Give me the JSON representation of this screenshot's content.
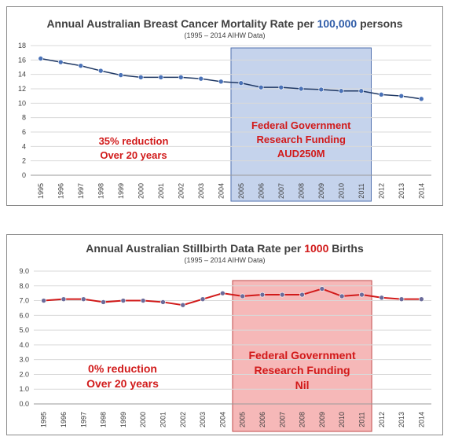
{
  "charts": [
    {
      "title_prefix": "Annual Australian Breast Cancer Mortality Rate per ",
      "title_highlight": "100,000",
      "title_suffix": " persons",
      "subtitle": "(1995 – 2014 AIHW Data)",
      "annotation_left": [
        "35% reduction",
        "Over 20 years"
      ],
      "annotation_box": [
        "Federal Government",
        "Research Funding",
        "AUD250M"
      ],
      "colors": {
        "line": "#1f3864",
        "marker": "#4a72b8",
        "highlight_fill": "#c5d3ec",
        "highlight_border": "#4f6fae",
        "title_highlight": "#2f5ca8",
        "annotation": "#d11a1a"
      }
    },
    {
      "title_prefix": "Annual Australian Stillbirth Data Rate per ",
      "title_highlight": "1000",
      "title_suffix": " Births",
      "subtitle": "(1995 – 2014 AIHW Data)",
      "annotation_left": [
        "0% reduction",
        "Over 20 years"
      ],
      "annotation_box": [
        "Federal Government",
        "Research Funding",
        "Nil"
      ],
      "colors": {
        "line": "#d11a1a",
        "marker": "#6b6b9a",
        "highlight_fill": "#f6b8b8",
        "highlight_border": "#c04a4a",
        "title_highlight": "#d11a1a",
        "annotation": "#d11a1a"
      }
    }
  ],
  "chart_data": [
    {
      "type": "line",
      "title": "Annual Australian Breast Cancer Mortality Rate per 100,000 persons",
      "subtitle": "(1995 – 2014 AIHW Data)",
      "categories": [
        "1995",
        "1996",
        "1997",
        "1998",
        "1999",
        "2000",
        "2001",
        "2002",
        "2003",
        "2004",
        "2005",
        "2006",
        "2007",
        "2008",
        "2009",
        "2010",
        "2011",
        "2012",
        "2013",
        "2014"
      ],
      "values": [
        16.2,
        15.7,
        15.2,
        14.5,
        13.9,
        13.6,
        13.6,
        13.6,
        13.4,
        13.0,
        12.8,
        12.2,
        12.2,
        12.0,
        11.9,
        11.7,
        11.7,
        11.2,
        11.0,
        10.6
      ],
      "ylim": [
        0,
        18
      ],
      "yticks": [
        "0",
        "2",
        "4",
        "6",
        "8",
        "10",
        "12",
        "14",
        "16",
        "18"
      ],
      "highlight_range": [
        "2005",
        "2011"
      ],
      "grid": true
    },
    {
      "type": "line",
      "title": "Annual Australian Stillbirth Data Rate per 1000 Births",
      "subtitle": "(1995 – 2014 AIHW Data)",
      "categories": [
        "1995",
        "1996",
        "1997",
        "1998",
        "1999",
        "2000",
        "2001",
        "2002",
        "2003",
        "2004",
        "2005",
        "2006",
        "2007",
        "2008",
        "2009",
        "2010",
        "2011",
        "2012",
        "2013",
        "2014"
      ],
      "values": [
        7.0,
        7.1,
        7.1,
        6.9,
        7.0,
        7.0,
        6.9,
        6.7,
        7.1,
        7.5,
        7.3,
        7.4,
        7.4,
        7.4,
        7.8,
        7.3,
        7.4,
        7.2,
        7.1,
        7.1
      ],
      "ylim": [
        0,
        9
      ],
      "yticks": [
        "0.0",
        "1.0",
        "2.0",
        "3.0",
        "4.0",
        "5.0",
        "6.0",
        "7.0",
        "8.0",
        "9.0"
      ],
      "highlight_range": [
        "2005",
        "2011"
      ],
      "grid": true
    }
  ]
}
